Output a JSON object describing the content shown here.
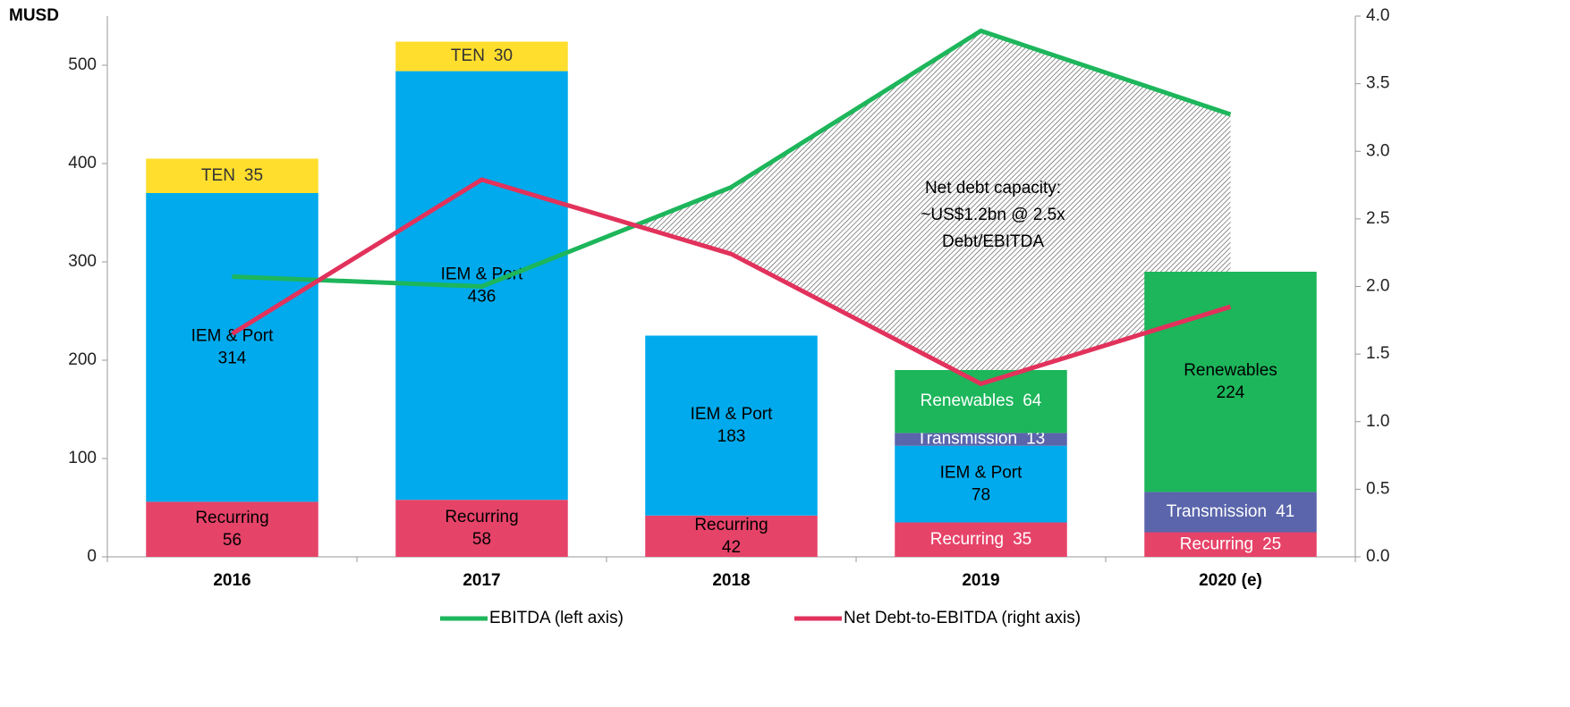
{
  "chart_data": {
    "type": "bar",
    "y_label": "MUSD",
    "categories": [
      "2016",
      "2017",
      "2018",
      "2019",
      "2020 (e)"
    ],
    "series": [
      {
        "name": "Recurring",
        "color": "#e64369",
        "values": [
          56,
          58,
          42,
          35,
          25
        ]
      },
      {
        "name": "IEM & Port",
        "color": "#00aaec",
        "values": [
          314,
          436,
          183,
          78,
          null
        ]
      },
      {
        "name": "TEN",
        "color": "#ffde2d",
        "values": [
          35,
          30,
          null,
          null,
          null
        ]
      },
      {
        "name": "Transmission",
        "color": "#5a65ab",
        "values": [
          null,
          null,
          null,
          13,
          41
        ]
      },
      {
        "name": "Renewables",
        "color": "#1db65b",
        "values": [
          null,
          null,
          null,
          64,
          224
        ]
      }
    ],
    "lines": [
      {
        "name": "EBITDA (left axis)",
        "color": "#1db65b",
        "axis": "y",
        "values": [
          285,
          275,
          376,
          535,
          450
        ]
      },
      {
        "name": "Net Debt-to-EBITDA (right axis)",
        "color": "#e2325c",
        "axis": "y2",
        "values": [
          1.65,
          2.79,
          2.24,
          1.28,
          1.85
        ]
      }
    ],
    "annotation": [
      "Net debt capacity:",
      "~US$1.2bn @ 2.5x",
      "Debt/EBITDA"
    ],
    "ylim": [
      0,
      550
    ],
    "yticks": [
      0,
      100,
      200,
      300,
      400,
      500
    ],
    "y2lim": [
      0,
      4
    ],
    "y2ticks": [
      {
        "value": 0,
        "label": "0.0"
      },
      0.5,
      {
        "value": 1,
        "label": "1.0"
      },
      1.5,
      {
        "value": 2,
        "label": "2.0"
      },
      2.5,
      {
        "value": 3,
        "label": "3.0"
      },
      3.5,
      {
        "value": 4,
        "label": "4.0"
      }
    ]
  }
}
